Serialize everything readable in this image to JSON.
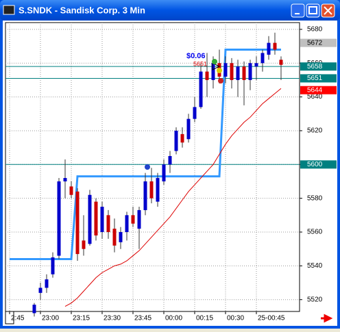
{
  "chart_data": {
    "type": "candlestick",
    "title": "S.SNDK - Sandisk Corp. 3 Min",
    "categories": [
      "2:45",
      null,
      null,
      null,
      null,
      "23:00",
      null,
      null,
      null,
      null,
      "23:15",
      null,
      null,
      null,
      null,
      "23:30",
      null,
      null,
      null,
      null,
      "23:45",
      null,
      null,
      null,
      null,
      "00:00",
      null,
      null,
      null,
      null,
      "00:15",
      null,
      null,
      null,
      null,
      "00:30",
      null,
      null,
      null,
      null,
      "25-00:45",
      null,
      null,
      null,
      null
    ],
    "open": [
      null,
      null,
      null,
      null,
      5512,
      5524,
      5527,
      5535,
      5546,
      5590,
      5587,
      5584,
      5555,
      5553,
      5578,
      5560,
      5570,
      5562,
      5554,
      5560,
      5570,
      5562,
      5573,
      5590,
      5578,
      5590,
      5600,
      5608,
      5618,
      5615,
      5627,
      5634,
      5655,
      5650,
      5660,
      5652,
      5660,
      5650,
      5658,
      5650,
      5658,
      5660,
      5665,
      5672,
      5662
    ],
    "high": [
      null,
      null,
      null,
      null,
      5518,
      5530,
      5535,
      5548,
      5592,
      5603,
      5590,
      5586,
      5570,
      5585,
      5580,
      5578,
      5573,
      5568,
      5563,
      5572,
      5575,
      5575,
      5595,
      5598,
      5595,
      5603,
      5608,
      5622,
      5622,
      5630,
      5640,
      5660,
      5666,
      5664,
      5668,
      5664,
      5663,
      5662,
      5661,
      5662,
      5664,
      5668,
      5676,
      5678,
      5664
    ],
    "low": [
      null,
      null,
      null,
      null,
      5510,
      5520,
      5524,
      5533,
      5544,
      5580,
      5580,
      5543,
      5546,
      5552,
      5555,
      5556,
      5556,
      5548,
      5550,
      5555,
      5563,
      5550,
      5570,
      5577,
      5575,
      5588,
      5595,
      5606,
      5610,
      5613,
      5625,
      5633,
      5640,
      5645,
      5648,
      5648,
      5645,
      5640,
      5635,
      5644,
      5650,
      5655,
      5662,
      5665,
      5650
    ],
    "close": [
      null,
      null,
      null,
      null,
      5517,
      5527,
      5532,
      5545,
      5590,
      5592,
      5582,
      5547,
      5550,
      5582,
      5558,
      5575,
      5560,
      5552,
      5560,
      5570,
      5565,
      5573,
      5590,
      5580,
      5592,
      5600,
      5605,
      5620,
      5613,
      5627,
      5634,
      5655,
      5650,
      5660,
      5652,
      5660,
      5650,
      5658,
      5650,
      5660,
      5660,
      5666,
      5672,
      5668,
      5659
    ],
    "up_color": "#0000cc",
    "down_color": "#cc0000",
    "series": [
      {
        "name": "stop",
        "color": "#3399ff",
        "values": [
          5544,
          5544,
          5544,
          5544,
          5544,
          5544,
          5544,
          5544,
          5544,
          5544,
          5544,
          5593,
          5593,
          5593,
          5593,
          5593,
          5593,
          5593,
          5593,
          5593,
          5593,
          5593,
          5593,
          5593,
          5593,
          5593,
          5593,
          5593,
          5593,
          5593,
          5593,
          5593,
          5593,
          5593,
          5593,
          5668,
          5668,
          5668,
          5668,
          5668,
          5668,
          5668,
          5668,
          5668,
          5668
        ]
      },
      {
        "name": "average",
        "color": "#dd0000",
        "values": [
          null,
          null,
          null,
          null,
          null,
          null,
          null,
          null,
          null,
          5516,
          5518,
          5521,
          5525,
          5529,
          5533,
          5536,
          5538,
          5540,
          5541,
          5543,
          5546,
          5549,
          5553,
          5557,
          5561,
          5565,
          5569,
          5574,
          5579,
          5584,
          5588,
          5592,
          5596,
          5600,
          5606,
          5612,
          5617,
          5621,
          5625,
          5628,
          5632,
          5636,
          5639,
          5642,
          5645
        ]
      }
    ],
    "hlines": [
      {
        "value": 5658,
        "color": "#008080"
      },
      {
        "value": 5651,
        "color": "#008080"
      },
      {
        "value": 5600,
        "color": "#008080"
      }
    ],
    "price_labels": [
      {
        "value": 5672,
        "color": "#c0c0c0"
      },
      {
        "value": 5644,
        "color": "#ff0000"
      }
    ],
    "annotations": [
      "$0.06",
      "5651"
    ],
    "ylim": [
      5513,
      5684
    ],
    "yticks": [
      5520,
      5540,
      5560,
      5580,
      5600,
      5620,
      5640,
      5660,
      5680
    ],
    "grid": true
  }
}
